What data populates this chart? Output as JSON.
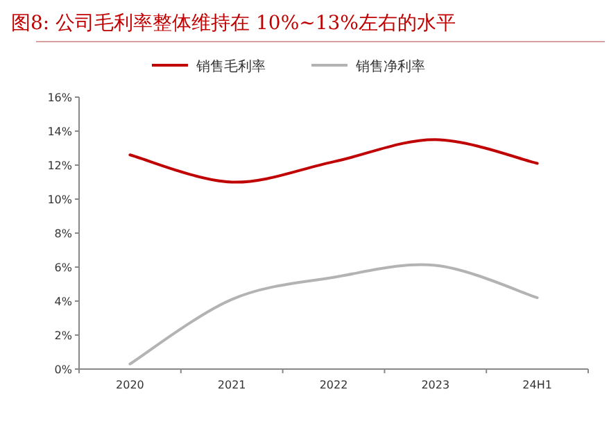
{
  "chart_data": {
    "type": "line",
    "title": "图8:   公司毛利率整体维持在 10%~13%左右的水平",
    "categories": [
      "2020",
      "2021",
      "2022",
      "2023",
      "24H1"
    ],
    "series": [
      {
        "name": "销售毛利率",
        "color": "#c00000",
        "values": [
          12.6,
          11.0,
          12.2,
          13.5,
          12.1
        ]
      },
      {
        "name": "销售净利率",
        "color": "#b3b3b3",
        "values": [
          0.3,
          4.1,
          5.4,
          6.1,
          4.2
        ]
      }
    ],
    "ylim": [
      0,
      16
    ],
    "yticks": [
      {
        "value": 0,
        "label": "0%"
      },
      {
        "value": 2,
        "label": "2%"
      },
      {
        "value": 4,
        "label": "4%"
      },
      {
        "value": 6,
        "label": "6%"
      },
      {
        "value": 8,
        "label": "8%"
      },
      {
        "value": 10,
        "label": "10%"
      },
      {
        "value": 12,
        "label": "12%"
      },
      {
        "value": 14,
        "label": "14%"
      },
      {
        "value": 16,
        "label": "16%"
      }
    ],
    "grid": false,
    "legend": "top",
    "marker": "none",
    "line_style": "solid"
  }
}
